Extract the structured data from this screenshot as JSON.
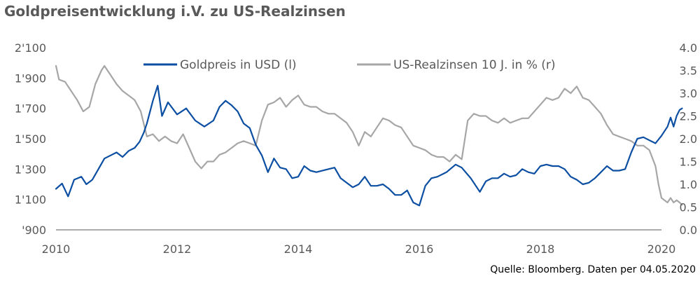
{
  "chart_data": {
    "type": "line",
    "title": "Goldpreisentwicklung i.V. zu US-Realzinsen",
    "source_note": "Quelle: Bloomberg. Daten per 04.05.2020",
    "legend_position": "top",
    "grid": false,
    "x_axis": {
      "range": [
        2010.0,
        2020.0
      ],
      "ticks": [
        2010,
        2012,
        2014,
        2016,
        2018,
        2020
      ],
      "tick_labels": [
        "2010",
        "2012",
        "2014",
        "2016",
        "2018",
        "2020"
      ]
    },
    "y_axis_left": {
      "range": [
        900,
        2100
      ],
      "ticks": [
        900,
        1100,
        1300,
        1500,
        1700,
        1900,
        2100
      ],
      "tick_labels": [
        "'900",
        "1'100",
        "1'300",
        "1'500",
        "1'700",
        "1'900",
        "2'100"
      ]
    },
    "y_axis_right": {
      "range": [
        0.0,
        4.0
      ],
      "ticks": [
        0.0,
        0.5,
        1.0,
        1.5,
        2.0,
        2.5,
        3.0,
        3.5,
        4.0
      ],
      "tick_labels": [
        "0.0",
        "0.5",
        "1.0",
        "1.5",
        "2.0",
        "2.5",
        "3.0",
        "3.5",
        "4.0"
      ]
    },
    "series": [
      {
        "name": "Goldpreis in USD (l)",
        "axis": "left",
        "color": "#0B4EA2",
        "x": [
          2010.0,
          2010.1,
          2010.2,
          2010.3,
          2010.42,
          2010.5,
          2010.6,
          2010.7,
          2010.8,
          2010.9,
          2011.0,
          2011.1,
          2011.2,
          2011.3,
          2011.38,
          2011.45,
          2011.5,
          2011.6,
          2011.68,
          2011.75,
          2011.85,
          2012.0,
          2012.15,
          2012.3,
          2012.45,
          2012.6,
          2012.7,
          2012.8,
          2012.9,
          2013.0,
          2013.1,
          2013.2,
          2013.3,
          2013.4,
          2013.5,
          2013.6,
          2013.7,
          2013.8,
          2013.9,
          2014.0,
          2014.1,
          2014.2,
          2014.3,
          2014.5,
          2014.6,
          2014.7,
          2014.8,
          2014.9,
          2015.0,
          2015.1,
          2015.2,
          2015.3,
          2015.4,
          2015.5,
          2015.6,
          2015.7,
          2015.8,
          2015.9,
          2016.0,
          2016.1,
          2016.2,
          2016.3,
          2016.45,
          2016.6,
          2016.7,
          2016.85,
          2017.0,
          2017.1,
          2017.2,
          2017.3,
          2017.4,
          2017.5,
          2017.6,
          2017.7,
          2017.8,
          2017.9,
          2018.0,
          2018.1,
          2018.2,
          2018.3,
          2018.4,
          2018.5,
          2018.6,
          2018.7,
          2018.8,
          2018.9,
          2019.0,
          2019.1,
          2019.2,
          2019.3,
          2019.4,
          2019.5,
          2019.6,
          2019.7,
          2019.8,
          2019.9,
          2020.0,
          2020.1,
          2020.15,
          2020.2,
          2020.25,
          2020.3,
          2020.34
        ],
        "y": [
          1170,
          1205,
          1120,
          1230,
          1250,
          1200,
          1230,
          1300,
          1370,
          1390,
          1410,
          1380,
          1420,
          1440,
          1480,
          1540,
          1600,
          1750,
          1850,
          1650,
          1740,
          1660,
          1700,
          1620,
          1580,
          1620,
          1710,
          1750,
          1720,
          1680,
          1600,
          1570,
          1460,
          1390,
          1280,
          1370,
          1310,
          1300,
          1240,
          1250,
          1320,
          1290,
          1280,
          1300,
          1310,
          1240,
          1210,
          1180,
          1200,
          1250,
          1190,
          1190,
          1200,
          1170,
          1130,
          1130,
          1160,
          1080,
          1060,
          1190,
          1240,
          1250,
          1280,
          1330,
          1310,
          1240,
          1150,
          1220,
          1240,
          1240,
          1270,
          1250,
          1260,
          1300,
          1280,
          1270,
          1320,
          1330,
          1320,
          1320,
          1300,
          1250,
          1230,
          1200,
          1210,
          1240,
          1280,
          1320,
          1290,
          1290,
          1300,
          1410,
          1500,
          1510,
          1490,
          1470,
          1520,
          1580,
          1640,
          1580,
          1650,
          1690,
          1700
        ]
      },
      {
        "name": "US-Realzinsen 10 J. in % (r)",
        "axis": "right",
        "color": "#A6A6A6",
        "x": [
          2010.0,
          2010.05,
          2010.15,
          2010.25,
          2010.35,
          2010.45,
          2010.55,
          2010.65,
          2010.75,
          2010.8,
          2010.9,
          2011.0,
          2011.1,
          2011.2,
          2011.3,
          2011.4,
          2011.5,
          2011.6,
          2011.7,
          2011.8,
          2011.9,
          2012.0,
          2012.1,
          2012.2,
          2012.3,
          2012.4,
          2012.5,
          2012.6,
          2012.7,
          2012.8,
          2012.9,
          2013.0,
          2013.1,
          2013.2,
          2013.3,
          2013.4,
          2013.5,
          2013.6,
          2013.7,
          2013.8,
          2013.9,
          2014.0,
          2014.1,
          2014.2,
          2014.3,
          2014.4,
          2014.5,
          2014.6,
          2014.7,
          2014.8,
          2014.9,
          2015.0,
          2015.1,
          2015.2,
          2015.3,
          2015.4,
          2015.5,
          2015.6,
          2015.7,
          2015.8,
          2015.9,
          2016.0,
          2016.1,
          2016.2,
          2016.3,
          2016.4,
          2016.5,
          2016.6,
          2016.7,
          2016.8,
          2016.9,
          2017.0,
          2017.1,
          2017.2,
          2017.3,
          2017.4,
          2017.5,
          2017.6,
          2017.7,
          2017.8,
          2017.9,
          2018.0,
          2018.1,
          2018.2,
          2018.3,
          2018.4,
          2018.5,
          2018.6,
          2018.7,
          2018.8,
          2018.9,
          2019.0,
          2019.1,
          2019.2,
          2019.3,
          2019.4,
          2019.5,
          2019.6,
          2019.7,
          2019.8,
          2019.9,
          2019.95,
          2020.0,
          2020.05,
          2020.1,
          2020.15,
          2020.2,
          2020.25,
          2020.3,
          2020.34
        ],
        "y": [
          3.6,
          3.3,
          3.25,
          3.05,
          2.85,
          2.6,
          2.7,
          3.2,
          3.5,
          3.6,
          3.4,
          3.2,
          3.05,
          2.95,
          2.85,
          2.6,
          2.05,
          2.1,
          1.95,
          2.05,
          1.95,
          1.9,
          2.1,
          1.8,
          1.5,
          1.35,
          1.5,
          1.5,
          1.65,
          1.7,
          1.8,
          1.9,
          1.95,
          1.9,
          1.85,
          2.4,
          2.75,
          2.8,
          2.9,
          2.7,
          2.85,
          2.95,
          2.75,
          2.7,
          2.7,
          2.6,
          2.55,
          2.55,
          2.45,
          2.35,
          2.15,
          1.85,
          2.15,
          2.05,
          2.25,
          2.45,
          2.4,
          2.3,
          2.25,
          2.05,
          1.85,
          1.8,
          1.75,
          1.65,
          1.6,
          1.6,
          1.5,
          1.65,
          1.55,
          2.4,
          2.55,
          2.5,
          2.5,
          2.4,
          2.35,
          2.45,
          2.35,
          2.4,
          2.45,
          2.45,
          2.6,
          2.75,
          2.9,
          2.85,
          2.9,
          3.1,
          3.0,
          3.15,
          2.9,
          2.85,
          2.7,
          2.55,
          2.3,
          2.1,
          2.05,
          2.0,
          1.95,
          1.85,
          1.85,
          1.75,
          1.4,
          1.0,
          0.7,
          0.65,
          0.6,
          0.7,
          0.6,
          0.65,
          0.6,
          0.55
        ]
      }
    ]
  }
}
